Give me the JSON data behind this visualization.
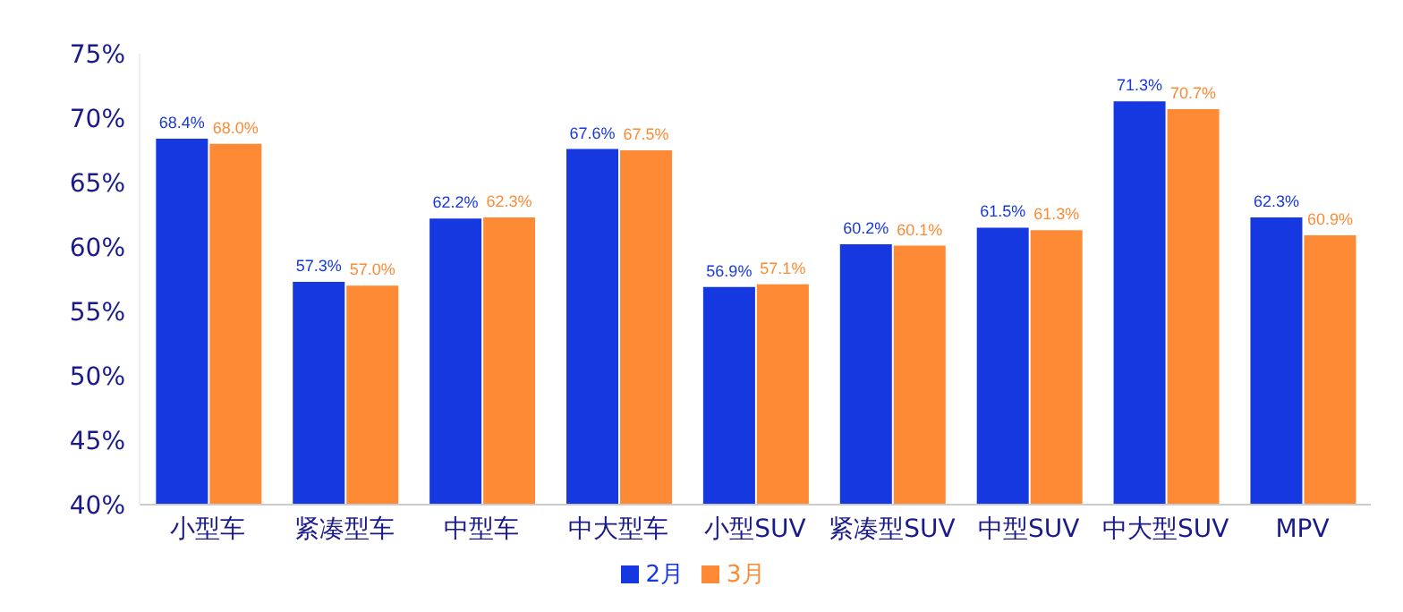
{
  "chart_data": {
    "type": "bar",
    "categories": [
      "小型车",
      "紧凑型车",
      "中型车",
      "中大型车",
      "小型SUV",
      "紧凑型SUV",
      "中型SUV",
      "中大型SUV",
      "MPV"
    ],
    "series": [
      {
        "name": "2月",
        "color": "#1638e0",
        "values": [
          68.4,
          57.3,
          62.2,
          67.6,
          56.9,
          60.2,
          61.5,
          71.3,
          62.3
        ],
        "value_labels": [
          "68.4%",
          "57.3%",
          "62.2%",
          "67.6%",
          "56.9%",
          "60.2%",
          "61.5%",
          "71.3%",
          "62.3%"
        ]
      },
      {
        "name": "3月",
        "color": "#ff8a35",
        "values": [
          68.0,
          57.0,
          62.3,
          67.5,
          57.1,
          60.1,
          61.3,
          70.7,
          60.9
        ],
        "value_labels": [
          "68.0%",
          "57.0%",
          "62.3%",
          "67.5%",
          "57.1%",
          "60.1%",
          "61.3%",
          "70.7%",
          "60.9%"
        ]
      }
    ],
    "ylim": [
      40,
      75
    ],
    "yticks": [
      {
        "value": 40,
        "label": "40%"
      },
      {
        "value": 45,
        "label": "45%"
      },
      {
        "value": 50,
        "label": "50%"
      },
      {
        "value": 55,
        "label": "55%"
      },
      {
        "value": 60,
        "label": "60%"
      },
      {
        "value": 65,
        "label": "65%"
      },
      {
        "value": 70,
        "label": "70%"
      },
      {
        "value": 75,
        "label": "75%"
      }
    ],
    "grid": false,
    "legend": "bottom"
  }
}
